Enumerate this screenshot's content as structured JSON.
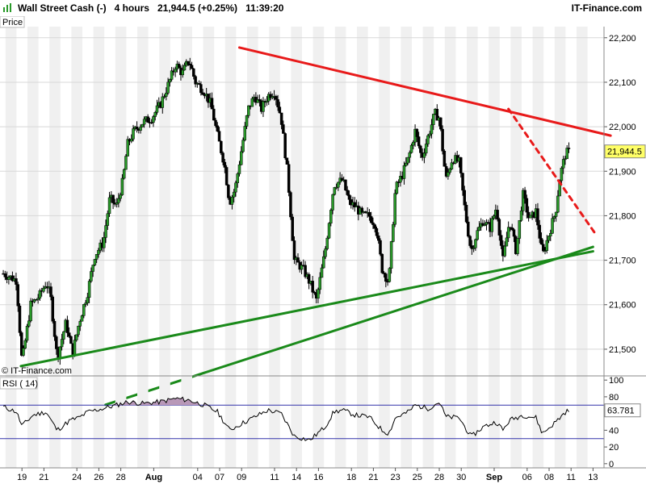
{
  "header": {
    "instrument": "Wall Street Cash (-)",
    "timeframe": "4 hours",
    "last_price": "21,944.5",
    "change": "(+0.25%)",
    "time": "11:39:20",
    "brand": "IT-Finance.com"
  },
  "chart_data": [
    {
      "type": "candlestick",
      "panel_label": "Price",
      "watermark": "© IT-Finance.com",
      "last_value_label": "21,944.5",
      "last_value": 21944.5,
      "y_ticks": [
        21500,
        21600,
        21700,
        21800,
        21900,
        22000,
        22100,
        22200
      ],
      "y_tick_labels": [
        "21,500",
        "21,600",
        "21,700",
        "21,800",
        "21,900",
        "22,000",
        "22,100",
        "22,200"
      ],
      "ylim": [
        21440,
        22225
      ],
      "x_ticks": [
        {
          "day": 19,
          "label": "19"
        },
        {
          "day": 21,
          "label": "21"
        },
        {
          "day": 24,
          "label": "24"
        },
        {
          "day": 26,
          "label": "26"
        },
        {
          "day": 28,
          "label": "28"
        },
        {
          "day": 31,
          "label": "Aug"
        },
        {
          "day": 35,
          "label": "04"
        },
        {
          "day": 37,
          "label": "07"
        },
        {
          "day": 39,
          "label": "09"
        },
        {
          "day": 42,
          "label": "11"
        },
        {
          "day": 44,
          "label": "14"
        },
        {
          "day": 46,
          "label": "16"
        },
        {
          "day": 49,
          "label": "18"
        },
        {
          "day": 51,
          "label": "21"
        },
        {
          "day": 53,
          "label": "23"
        },
        {
          "day": 55,
          "label": "25"
        },
        {
          "day": 57,
          "label": "28"
        },
        {
          "day": 59,
          "label": "30"
        },
        {
          "day": 62,
          "label": "Sep"
        },
        {
          "day": 65,
          "label": "06"
        },
        {
          "day": 67,
          "label": "08"
        },
        {
          "day": 69,
          "label": "11"
        },
        {
          "day": 71,
          "label": "13"
        }
      ],
      "xlim": [
        17,
        72
      ],
      "grid": true,
      "key_points": [
        [
          17.3,
          21670
        ],
        [
          18.5,
          21655
        ],
        [
          19.0,
          21470
        ],
        [
          19.8,
          21600
        ],
        [
          20.6,
          21620
        ],
        [
          21.2,
          21650
        ],
        [
          21.6,
          21620
        ],
        [
          22.2,
          21480
        ],
        [
          23.0,
          21560
        ],
        [
          23.6,
          21490
        ],
        [
          24.2,
          21560
        ],
        [
          25.0,
          21630
        ],
        [
          25.6,
          21710
        ],
        [
          26.4,
          21740
        ],
        [
          27.0,
          21840
        ],
        [
          27.6,
          21820
        ],
        [
          28.2,
          21880
        ],
        [
          28.6,
          21960
        ],
        [
          29.2,
          21990
        ],
        [
          30.0,
          22010
        ],
        [
          30.8,
          22020
        ],
        [
          31.6,
          22050
        ],
        [
          32.4,
          22100
        ],
        [
          33.0,
          22140
        ],
        [
          33.6,
          22120
        ],
        [
          34.2,
          22150
        ],
        [
          34.8,
          22100
        ],
        [
          35.6,
          22080
        ],
        [
          36.2,
          22050
        ],
        [
          36.8,
          21980
        ],
        [
          37.4,
          21920
        ],
        [
          37.9,
          21830
        ],
        [
          38.4,
          21860
        ],
        [
          39.0,
          21950
        ],
        [
          39.6,
          22040
        ],
        [
          40.2,
          22070
        ],
        [
          40.8,
          22040
        ],
        [
          41.4,
          22070
        ],
        [
          42.0,
          22080
        ],
        [
          42.6,
          22020
        ],
        [
          43.2,
          21890
        ],
        [
          43.8,
          21700
        ],
        [
          44.6,
          21680
        ],
        [
          45.2,
          21650
        ],
        [
          45.8,
          21610
        ],
        [
          46.6,
          21720
        ],
        [
          47.4,
          21870
        ],
        [
          48.2,
          21880
        ],
        [
          48.8,
          21830
        ],
        [
          49.4,
          21820
        ],
        [
          50.0,
          21800
        ],
        [
          50.6,
          21800
        ],
        [
          51.2,
          21780
        ],
        [
          51.8,
          21680
        ],
        [
          52.4,
          21650
        ],
        [
          53.0,
          21860
        ],
        [
          53.6,
          21890
        ],
        [
          54.2,
          21930
        ],
        [
          54.8,
          21990
        ],
        [
          55.4,
          21930
        ],
        [
          56.0,
          21980
        ],
        [
          56.6,
          22030
        ],
        [
          57.0,
          22020
        ],
        [
          57.6,
          21880
        ],
        [
          58.2,
          21930
        ],
        [
          58.8,
          21920
        ],
        [
          59.4,
          21800
        ],
        [
          59.9,
          21720
        ],
        [
          60.4,
          21760
        ],
        [
          61.0,
          21790
        ],
        [
          61.6,
          21770
        ],
        [
          62.2,
          21820
        ],
        [
          62.8,
          21700
        ],
        [
          63.4,
          21790
        ],
        [
          64.0,
          21720
        ],
        [
          64.6,
          21850
        ],
        [
          65.2,
          21790
        ],
        [
          65.8,
          21810
        ],
        [
          66.4,
          21710
        ],
        [
          67.0,
          21760
        ],
        [
          67.6,
          21810
        ],
        [
          68.0,
          21890
        ],
        [
          68.5,
          21940
        ],
        [
          68.9,
          21944.5
        ]
      ],
      "trendlines": [
        {
          "color": "#e81a1a",
          "style": "solid",
          "from": [
            38.8,
            22178
          ],
          "to": [
            72.6,
            21980
          ]
        },
        {
          "color": "#e81a1a",
          "style": "dashed",
          "from": [
            63.3,
            22040
          ],
          "to": [
            71.2,
            21760
          ]
        },
        {
          "color": "#1a8a1a",
          "style": "solid",
          "from": [
            18.9,
            21462
          ],
          "to": [
            71.0,
            21720
          ]
        },
        {
          "color": "#1a8a1a",
          "style": "solid",
          "from": [
            26.6,
            21375
          ],
          "to": [
            71.0,
            21730
          ]
        }
      ]
    },
    {
      "type": "line",
      "panel_label": "RSI ( 14)",
      "last_value_label": "63.781",
      "last_value": 63.781,
      "y_ticks": [
        0,
        20,
        40,
        60,
        80,
        100
      ],
      "y_tick_labels": [
        "0",
        "20",
        "40",
        "60",
        "80",
        "100"
      ],
      "ylim": [
        -5,
        105
      ],
      "levels": [
        70,
        30
      ],
      "key_points": [
        [
          17.3,
          68
        ],
        [
          18.5,
          62
        ],
        [
          19.0,
          45
        ],
        [
          20.0,
          58
        ],
        [
          21.2,
          62
        ],
        [
          22.2,
          40
        ],
        [
          23.4,
          52
        ],
        [
          24.2,
          55
        ],
        [
          25.0,
          62
        ],
        [
          26.4,
          66
        ],
        [
          27.6,
          70
        ],
        [
          28.6,
          74
        ],
        [
          30.0,
          72
        ],
        [
          31.6,
          74
        ],
        [
          33.0,
          78
        ],
        [
          34.2,
          76
        ],
        [
          35.6,
          70
        ],
        [
          36.8,
          62
        ],
        [
          37.9,
          40
        ],
        [
          39.0,
          48
        ],
        [
          40.2,
          56
        ],
        [
          41.4,
          64
        ],
        [
          42.6,
          60
        ],
        [
          43.8,
          33
        ],
        [
          45.2,
          28
        ],
        [
          46.6,
          44
        ],
        [
          47.4,
          62
        ],
        [
          48.2,
          64
        ],
        [
          49.4,
          58
        ],
        [
          50.6,
          56
        ],
        [
          51.8,
          40
        ],
        [
          52.4,
          36
        ],
        [
          53.0,
          55
        ],
        [
          54.2,
          62
        ],
        [
          54.8,
          70
        ],
        [
          56.0,
          66
        ],
        [
          57.0,
          74
        ],
        [
          57.6,
          56
        ],
        [
          58.8,
          55
        ],
        [
          59.9,
          32
        ],
        [
          61.0,
          44
        ],
        [
          62.2,
          50
        ],
        [
          62.8,
          40
        ],
        [
          63.4,
          52
        ],
        [
          64.6,
          58
        ],
        [
          65.8,
          55
        ],
        [
          66.4,
          36
        ],
        [
          67.6,
          50
        ],
        [
          68.5,
          62
        ],
        [
          68.9,
          63.781
        ]
      ]
    }
  ]
}
